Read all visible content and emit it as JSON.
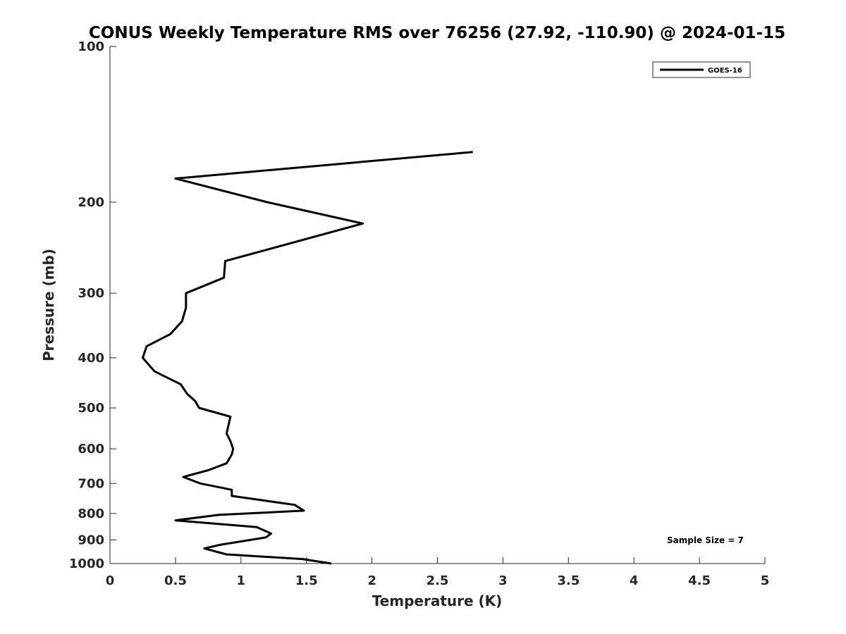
{
  "chart_data": {
    "type": "line",
    "title": "CONUS Weekly Temperature RMS over 76256 (27.92, -110.90) @ 2024-01-15",
    "xlabel": "Temperature (K)",
    "ylabel": "Pressure (mb)",
    "xlim": [
      0,
      5
    ],
    "ylim": [
      100,
      1000
    ],
    "yscale": "log",
    "y_reversed": true,
    "xticks": [
      0,
      0.5,
      1,
      1.5,
      2,
      2.5,
      3,
      3.5,
      4,
      4.5,
      5
    ],
    "xtick_labels": [
      "0",
      "0.5",
      "1",
      "1.5",
      "2",
      "2.5",
      "3",
      "3.5",
      "4",
      "4.5",
      "5"
    ],
    "yticks": [
      100,
      200,
      300,
      400,
      500,
      600,
      700,
      800,
      900,
      1000
    ],
    "ytick_labels": [
      "100",
      "200",
      "300",
      "400",
      "500",
      "600",
      "700",
      "800",
      "900",
      "1000"
    ],
    "grid": false,
    "legend_position": "top-right",
    "series": [
      {
        "name": "GOES-16",
        "color": "#000000",
        "points": [
          {
            "x": 2.77,
            "y": 160
          },
          {
            "x": 0.5,
            "y": 180
          },
          {
            "x": 1.2,
            "y": 200
          },
          {
            "x": 1.93,
            "y": 220
          },
          {
            "x": 0.88,
            "y": 260
          },
          {
            "x": 0.87,
            "y": 280
          },
          {
            "x": 0.58,
            "y": 300
          },
          {
            "x": 0.58,
            "y": 320
          },
          {
            "x": 0.55,
            "y": 340
          },
          {
            "x": 0.46,
            "y": 360
          },
          {
            "x": 0.28,
            "y": 380
          },
          {
            "x": 0.25,
            "y": 400
          },
          {
            "x": 0.34,
            "y": 425
          },
          {
            "x": 0.54,
            "y": 450
          },
          {
            "x": 0.59,
            "y": 470
          },
          {
            "x": 0.65,
            "y": 485
          },
          {
            "x": 0.68,
            "y": 500
          },
          {
            "x": 0.92,
            "y": 520
          },
          {
            "x": 0.89,
            "y": 560
          },
          {
            "x": 0.92,
            "y": 580
          },
          {
            "x": 0.94,
            "y": 600
          },
          {
            "x": 0.93,
            "y": 615
          },
          {
            "x": 0.89,
            "y": 640
          },
          {
            "x": 0.75,
            "y": 660
          },
          {
            "x": 0.56,
            "y": 680
          },
          {
            "x": 0.69,
            "y": 700
          },
          {
            "x": 0.93,
            "y": 720
          },
          {
            "x": 0.93,
            "y": 740
          },
          {
            "x": 1.41,
            "y": 770
          },
          {
            "x": 1.48,
            "y": 790
          },
          {
            "x": 0.83,
            "y": 805
          },
          {
            "x": 0.5,
            "y": 825
          },
          {
            "x": 1.12,
            "y": 850
          },
          {
            "x": 1.23,
            "y": 875
          },
          {
            "x": 1.19,
            "y": 890
          },
          {
            "x": 0.84,
            "y": 920
          },
          {
            "x": 0.72,
            "y": 935
          },
          {
            "x": 0.89,
            "y": 960
          },
          {
            "x": 1.47,
            "y": 980
          },
          {
            "x": 1.69,
            "y": 1000
          }
        ]
      }
    ],
    "annotations": [
      "Sample Size = 7"
    ]
  }
}
